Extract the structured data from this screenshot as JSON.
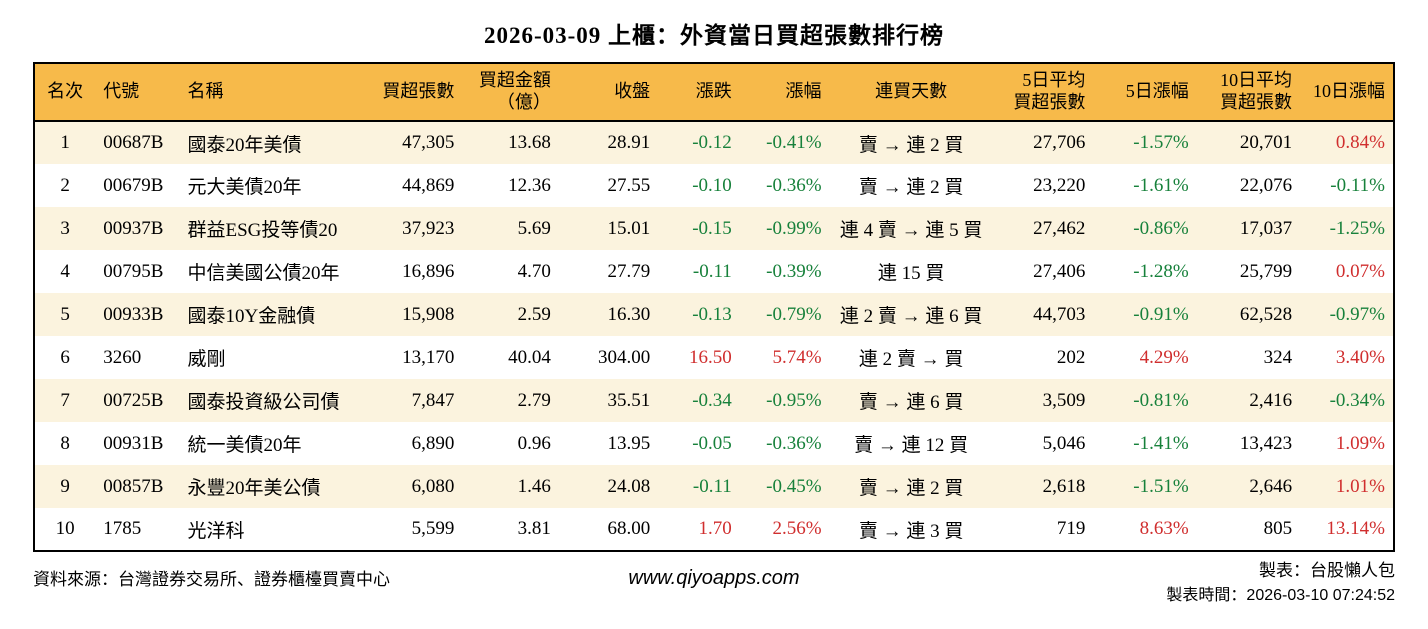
{
  "chart_data": {
    "type": "table",
    "title": "2026-03-09 上櫃：外資當日買超張數排行榜",
    "columns": [
      {
        "key": "rank",
        "label": "名次",
        "align": "center",
        "width": "4.5%",
        "signed": false
      },
      {
        "key": "code",
        "label": "代號",
        "align": "left",
        "width": "6.2%",
        "signed": false
      },
      {
        "key": "name",
        "label": "名稱",
        "align": "left",
        "width": "13.5%",
        "signed": false
      },
      {
        "key": "buy_shares",
        "label": "買超張數",
        "align": "right",
        "width": "7.3%",
        "signed": false
      },
      {
        "key": "buy_amount",
        "label": "買超金額\n（億）",
        "align": "right",
        "width": "7.1%",
        "signed": false
      },
      {
        "key": "close",
        "label": "收盤",
        "align": "right",
        "width": "7.3%",
        "signed": false
      },
      {
        "key": "change",
        "label": "漲跌",
        "align": "right",
        "width": "6.0%",
        "signed": true
      },
      {
        "key": "change_pct",
        "label": "漲幅",
        "align": "right",
        "width": "6.6%",
        "signed": true
      },
      {
        "key": "streak",
        "label": "連買天數",
        "align": "center",
        "width": "12.0%",
        "signed": false
      },
      {
        "key": "avg5",
        "label": "5日平均\n買超張數",
        "align": "right",
        "width": "7.4%",
        "signed": false
      },
      {
        "key": "pct5",
        "label": "5日漲幅",
        "align": "right",
        "width": "7.6%",
        "signed": true
      },
      {
        "key": "avg10",
        "label": "10日平均\n買超張數",
        "align": "right",
        "width": "7.6%",
        "signed": false
      },
      {
        "key": "pct10",
        "label": "10日漲幅",
        "align": "right",
        "width": "6.9%",
        "signed": true
      }
    ],
    "rows": [
      [
        "1",
        "00687B",
        "國泰20年美債",
        "47,305",
        "13.68",
        "28.91",
        "-0.12",
        "-0.41%",
        "賣 → 連 2 買",
        "27,706",
        "-1.57%",
        "20,701",
        "0.84%"
      ],
      [
        "2",
        "00679B",
        "元大美債20年",
        "44,869",
        "12.36",
        "27.55",
        "-0.10",
        "-0.36%",
        "賣 → 連 2 買",
        "23,220",
        "-1.61%",
        "22,076",
        "-0.11%"
      ],
      [
        "3",
        "00937B",
        "群益ESG投等債20",
        "37,923",
        "5.69",
        "15.01",
        "-0.15",
        "-0.99%",
        "連 4 賣 → 連 5 買",
        "27,462",
        "-0.86%",
        "17,037",
        "-1.25%"
      ],
      [
        "4",
        "00795B",
        "中信美國公債20年",
        "16,896",
        "4.70",
        "27.79",
        "-0.11",
        "-0.39%",
        "連 15 買",
        "27,406",
        "-1.28%",
        "25,799",
        "0.07%"
      ],
      [
        "5",
        "00933B",
        "國泰10Y金融債",
        "15,908",
        "2.59",
        "16.30",
        "-0.13",
        "-0.79%",
        "連 2 賣 → 連 6 買",
        "44,703",
        "-0.91%",
        "62,528",
        "-0.97%"
      ],
      [
        "6",
        "3260",
        "威剛",
        "13,170",
        "40.04",
        "304.00",
        "16.50",
        "5.74%",
        "連 2 賣 → 買",
        "202",
        "4.29%",
        "324",
        "3.40%"
      ],
      [
        "7",
        "00725B",
        "國泰投資級公司債",
        "7,847",
        "2.79",
        "35.51",
        "-0.34",
        "-0.95%",
        "賣 → 連 6 買",
        "3,509",
        "-0.81%",
        "2,416",
        "-0.34%"
      ],
      [
        "8",
        "00931B",
        "統一美債20年",
        "6,890",
        "0.96",
        "13.95",
        "-0.05",
        "-0.36%",
        "賣 → 連 12 買",
        "5,046",
        "-1.41%",
        "13,423",
        "1.09%"
      ],
      [
        "9",
        "00857B",
        "永豐20年美公債",
        "6,080",
        "1.46",
        "24.08",
        "-0.11",
        "-0.45%",
        "賣 → 連 2 買",
        "2,618",
        "-1.51%",
        "2,646",
        "1.01%"
      ],
      [
        "10",
        "1785",
        "光洋科",
        "5,599",
        "3.81",
        "68.00",
        "1.70",
        "2.56%",
        "賣 → 連 3 買",
        "719",
        "8.63%",
        "805",
        "13.14%"
      ]
    ],
    "layout_hints": {
      "stripe_rows": "odd",
      "negative_color_rule": "values starting with '-' are green (down), others red (up) in signed columns"
    }
  },
  "colors": {
    "header_bg": "#F7BA4A",
    "stripe_bg": "#FBF3DE",
    "up_red": "#D02E2E",
    "down_green": "#17813B",
    "border": "#000000"
  },
  "footer": {
    "source": "資料來源：台灣證券交易所、證券櫃檯買賣中心",
    "website": "www.qiyoapps.com",
    "maker": "製表：台股懶人包",
    "made_at": "製表時間：2026-03-10 07:24:52"
  }
}
